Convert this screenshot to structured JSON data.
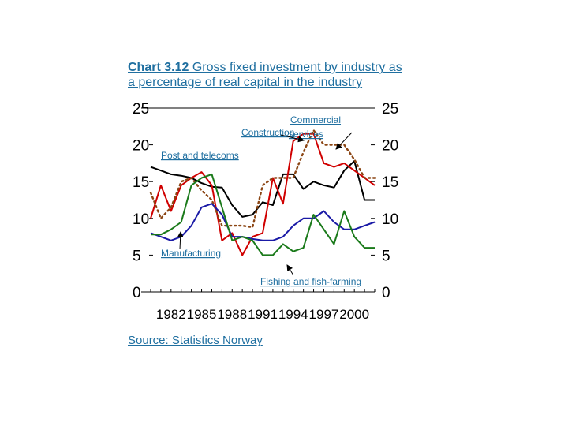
{
  "title": {
    "bold": "Chart 3.12",
    "rest": " Gross fixed investment by industry as a percentage of real capital in the industry"
  },
  "source": "Source: Statistics Norway",
  "chart_data": {
    "type": "line",
    "x": [
      1980,
      1981,
      1982,
      1983,
      1984,
      1985,
      1986,
      1987,
      1988,
      1989,
      1990,
      1991,
      1992,
      1993,
      1994,
      1995,
      1996,
      1997,
      1998,
      1999,
      2000,
      2001,
      2002
    ],
    "x_tick_labels": [
      "1982",
      "1985",
      "1988",
      "1991",
      "1994",
      "1997",
      "2000"
    ],
    "x_ticks": [
      1982,
      1985,
      1988,
      1991,
      1994,
      1997,
      2000
    ],
    "y_ticks_left": [
      "0",
      "5",
      "10",
      "15",
      "20",
      "25"
    ],
    "y_ticks_right": [
      "0",
      "5",
      "10",
      "15",
      "20",
      "25"
    ],
    "ylim": [
      0,
      25
    ],
    "series": [
      {
        "name": "Post and telecoms",
        "color": "#000000",
        "style": "solid",
        "values": [
          17.0,
          16.5,
          16.0,
          15.8,
          15.5,
          14.8,
          14.3,
          14.2,
          11.8,
          10.2,
          10.5,
          12.2,
          11.8,
          16.0,
          16.0,
          14.0,
          15.0,
          14.5,
          14.2,
          16.5,
          17.8,
          12.5,
          12.5
        ]
      },
      {
        "name": "Commercial services",
        "color": "#d00000",
        "style": "solid",
        "values": [
          10.0,
          14.5,
          11.0,
          14.5,
          15.5,
          16.3,
          14.5,
          7.0,
          8.0,
          5.0,
          7.5,
          8.0,
          15.5,
          12.0,
          20.5,
          21.5,
          21.5,
          17.5,
          17.0,
          17.5,
          16.5,
          15.5,
          14.5
        ]
      },
      {
        "name": "Construction",
        "color": "#8b4513",
        "style": "dotted",
        "values": [
          13.5,
          10.0,
          11.5,
          15.0,
          15.5,
          13.8,
          12.5,
          9.0,
          9.0,
          9.0,
          8.8,
          14.5,
          15.5,
          15.5,
          15.5,
          19.0,
          22.0,
          20.0,
          20.0,
          20.0,
          18.0,
          15.5,
          15.5
        ]
      },
      {
        "name": "Manufacturing",
        "color": "#1a1aa6",
        "style": "solid",
        "values": [
          8.0,
          7.5,
          7.0,
          7.5,
          9.0,
          11.5,
          12.0,
          10.5,
          7.5,
          7.5,
          7.2,
          7.0,
          7.0,
          7.5,
          9.0,
          10.0,
          10.0,
          11.0,
          9.5,
          8.5,
          8.5,
          9.0,
          9.5
        ]
      },
      {
        "name": "Fishing and fish-farming",
        "color": "#1a7a1a",
        "style": "solid",
        "values": [
          7.8,
          7.8,
          8.5,
          9.5,
          14.5,
          15.5,
          16.0,
          11.5,
          7.0,
          7.5,
          7.0,
          5.0,
          5.0,
          6.5,
          5.5,
          6.0,
          10.5,
          8.5,
          6.5,
          11.0,
          7.5,
          6.0,
          6.0
        ]
      }
    ],
    "annotations": [
      {
        "text": "Commercial",
        "series": "Commercial services"
      },
      {
        "text": "services",
        "series": "Commercial services"
      },
      {
        "text": "Construction",
        "series": "Construction"
      },
      {
        "text": "Post and telecoms",
        "series": "Post and telecoms"
      },
      {
        "text": "Manufacturing",
        "series": "Manufacturing"
      },
      {
        "text": "Fishing and fish-farming",
        "series": "Fishing and fish-farming"
      }
    ]
  }
}
